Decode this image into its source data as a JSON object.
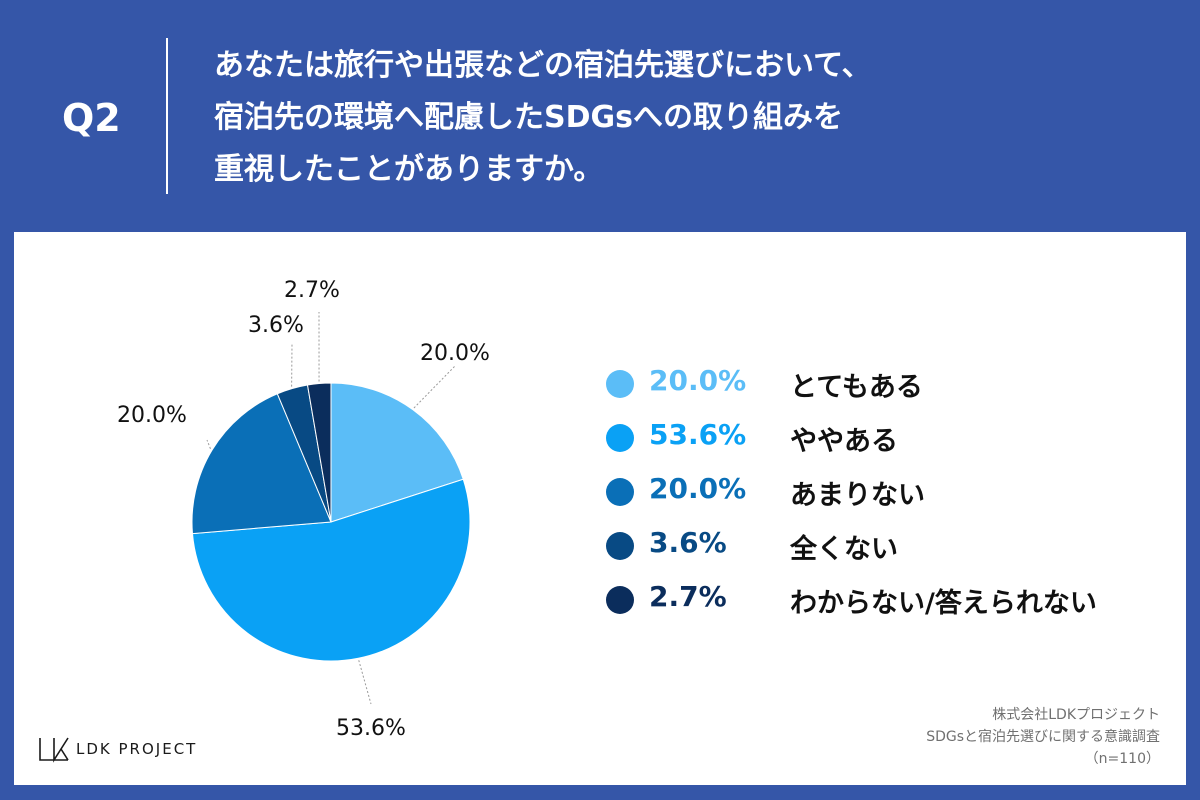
{
  "header": {
    "q_label": "Q2",
    "question_lines": [
      "あなたは旅行や出張などの宿泊先選びにおいて、",
      "宿泊先の環境へ配慮したSDGsへの取り組みを",
      "重視したことがありますか。"
    ]
  },
  "chart_data": {
    "type": "pie",
    "start_angle_deg": 0,
    "direction": "clockwise",
    "slices": [
      {
        "category": "とてもある",
        "value": 20.0,
        "label": "20.0%",
        "color": "#5bbdf7"
      },
      {
        "category": "ややある",
        "value": 53.6,
        "label": "53.6%",
        "color": "#0aa1f5"
      },
      {
        "category": "あまりない",
        "value": 20.0,
        "label": "20.0%",
        "color": "#0a6fb7"
      },
      {
        "category": "全くない",
        "value": 3.6,
        "label": "3.6%",
        "color": "#084a84"
      },
      {
        "category": "わからない/答えられない",
        "value": 2.7,
        "label": "2.7%",
        "color": "#0b2d5c"
      }
    ],
    "legend_position": "right"
  },
  "legend": {
    "items": [
      {
        "value": "20.0%",
        "text": "とてもある",
        "color": "#5bbdf7"
      },
      {
        "value": "53.6%",
        "text": "ややある",
        "color": "#0aa1f5"
      },
      {
        "value": "20.0%",
        "text": "あまりない",
        "color": "#0a6fb7"
      },
      {
        "value": "3.6%",
        "text": "全くない",
        "color": "#084a84"
      },
      {
        "value": "2.7%",
        "text": "わからない/答えられない",
        "color": "#0b2d5c"
      }
    ]
  },
  "footer": {
    "logo_text": "LDK PROJECT",
    "source_lines": [
      "株式会社LDKプロジェクト",
      "SDGsと宿泊先選びに関する意識調査",
      "（n=110）"
    ]
  }
}
